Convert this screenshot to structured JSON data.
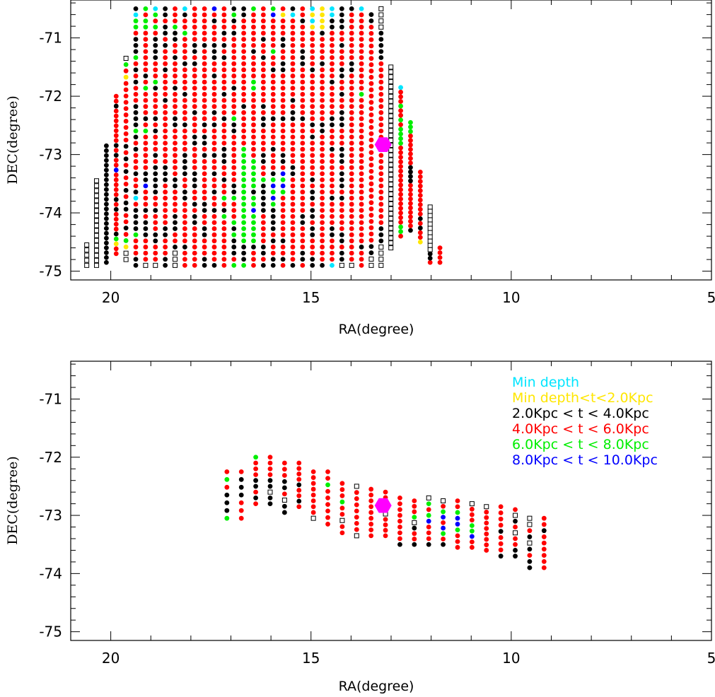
{
  "colors": {
    "cyan": "#00e5ff",
    "yellow": "#ffe600",
    "black": "#000000",
    "red": "#ff0000",
    "green": "#00ee00",
    "blue": "#0000ff",
    "empty": "#ffffff",
    "center": "#ff00ff"
  },
  "chart_data": [
    {
      "type": "scatter",
      "title": "",
      "xlabel": "RA(degree)",
      "ylabel": "DEC(degree)",
      "xlim": [
        21,
        5
      ],
      "ylim": [
        -75.15,
        -70.35
      ],
      "xticks": [
        20,
        15,
        10,
        5
      ],
      "yticks": [
        -71,
        -72,
        -73,
        -74,
        -75
      ],
      "grid": false,
      "center_marker": {
        "ra": 13.2,
        "dec": -72.83
      },
      "field": {
        "col_ra_start": 20.6,
        "col_ra_step": -0.245,
        "columns": [
          {
            "dec_min": -74.9,
            "dec_max": -74.55,
            "codes": "EEEEE"
          },
          {
            "dec_min": -74.9,
            "dec_max": -73.45,
            "codes": "EEEEEEEEEEEEEEEEEE"
          },
          {
            "dec_min": -74.85,
            "dec_max": -72.85,
            "codes": "KKKKKKKKKKKKKKKKKKKKKKKKK"
          },
          {
            "dec_min": -74.7,
            "dec_max": -72.0,
            "codes": "RRYGKRRRRKRKRRRRRBRRKRKRRRRRRRKRR"
          },
          {
            "dec_min": -74.8,
            "dec_max": -71.35,
            "codes": "EEYGRKRRKKRKRRKRKRKRRRRRRRRRRYRGE"
          },
          {
            "dec_min": -74.9,
            "dec_max": -70.5,
            "codes": "KKRRRGKKKKRCKRRKRRRKRKGKKKKRRRKRKRGKKKRGGCK"
          },
          {
            "dec_min": -74.9,
            "dec_max": -70.5,
            "codes": "ERRRRKKKRKRRRBKKRRRRRRGRKRRRRGRKRRRRRRRGGRG"
          },
          {
            "dec_min": -74.9,
            "dec_max": -70.5,
            "codes": "ERRRKKRRRKRRKKKKKRKRRRKRKRRRRKGRRRKKKKRGRGC"
          },
          {
            "dec_min": -74.9,
            "dec_max": -70.5,
            "codes": "KKRRRKKRRRRRRRKKKRRRRRRRRRRKRRRRKRRRKRKKRKK"
          },
          {
            "dec_min": -74.9,
            "dec_max": -70.5,
            "codes": "EEEKRRKKKRRRRKKRRRRRRRRKKRRRRKRRRRKRRKKGRRR"
          },
          {
            "dec_min": -74.9,
            "dec_max": -70.5,
            "codes": "RRRKRRRRRRRKKRRKKKKRRRRKRRRRKRRRRKRRRRGRRKC"
          },
          {
            "dec_min": -74.9,
            "dec_max": -70.5,
            "codes": "RRRRRRRKKRKRRKKKRRRRKKRRRKRRRRRRRKRKKRRRRRR"
          },
          {
            "dec_min": -74.9,
            "dec_max": -70.5,
            "codes": "KKRRRKKRRKKRRRRRRRKRKKRKRRRRRRRRRRRRKRRRRRR"
          },
          {
            "dec_min": -74.9,
            "dec_max": -70.5,
            "codes": "KRRRRRRRRKRRKRRKRRKRRRRKRKRRRRRKRRKKKRRRKRB"
          },
          {
            "dec_min": -74.9,
            "dec_max": -70.5,
            "codes": "RRRRRRRRGKRGRRKRRKKKRRRRKRRRKRRRRRKRKRKRRRR"
          },
          {
            "dec_min": -74.9,
            "dec_max": -70.5,
            "codes": "GRKKKGKGRRRGKKRRRRRRRRKKGRRRRKRRRRRRRRKRKGK"
          },
          {
            "dec_min": -74.9,
            "dec_max": -70.5,
            "codes": "GKKKGGGGGGGGGGGGGGGGRRRRRRKRRRRRRRRRRRRRRKK"
          },
          {
            "dec_min": -74.9,
            "dec_max": -70.5,
            "codes": "RRRKGGGGGBGGKGGGGGRRRRRRRRRRRGGRRRRKRRRRRRG"
          },
          {
            "dec_min": -74.9,
            "dec_max": -70.5,
            "codes": "KRKKRRRRRKKKKKGRRKKRRRRKKRKRRRRRRRKRRKRRRRR"
          },
          {
            "dec_min": -74.9,
            "dec_max": -70.5,
            "codes": "KKRRKRKKKKGBGBGKRRRKRRRRKRRRRRRRKRRGRRRRRBG"
          },
          {
            "dec_min": -74.9,
            "dec_max": -70.5,
            "codes": "RKRRKRRRRRRRGBGBRKKRRRRRKRRRRRRRKKRRKKRRRYR"
          },
          {
            "dec_min": -74.9,
            "dec_max": -70.5,
            "codes": "KRRRRRRRRRRRRRRKKRRRRRRRKKRKRRRRRRRRRRRRRCK"
          },
          {
            "dec_min": -74.9,
            "dec_max": -70.5,
            "codes": "RKKRRRRKKRRRRRRRRRRRRRRRKRRRRRRRRKKKRRRRKRR"
          },
          {
            "dec_min": -74.9,
            "dec_max": -70.5,
            "codes": "KKRRRKKRKKRKKRKRRRRRRKRKRRRRRRRRKRRRRRRYCYC"
          },
          {
            "dec_min": -74.9,
            "dec_max": -70.5,
            "codes": "KRRRRRRRRRRRRRRRRRRRRRKKRRRRRRRRRKRRRRKYYYY"
          },
          {
            "dec_min": -74.9,
            "dec_max": -70.5,
            "codes": "CRRRRKKRRRRKRRRRRRRKRRRKKRRRRRKRRRRRRRRKKCC"
          },
          {
            "dec_min": -74.9,
            "dec_max": -70.5,
            "codes": "EKKRKKRRRRRKRKKKRKKKRRRKKKRRKRRKKRRRKRRKKKK"
          },
          {
            "dec_min": -74.9,
            "dec_max": -70.5,
            "codes": "ERRRRRRRRRRRRRRRRRRRRRRRRRRRRRRRKKRRRRRRRRK"
          },
          {
            "dec_min": -74.9,
            "dec_max": -70.5,
            "codes": "RRRKRRRRRRRRRRRRRRRRRRRRRRRRGRRRRRRRRRRRRRC"
          },
          {
            "dec_min": -74.9,
            "dec_max": -70.6,
            "codes": "EEKKRRRRRRRRRRRRRRRRRRRRRRRRRRRRRRRRRRRKK"
          },
          {
            "dec_min": -74.9,
            "dec_max": -70.5,
            "codes": "EEEEKKKRRRRRRRRRRRRRRRRRRRRRRRRRRRKKKKKEEEE"
          },
          {
            "dec_min": -74.6,
            "dec_max": -71.5,
            "codes": "EEEEEEEEEEEEEEEEEEEEEEEEEEEEEEEEEEEEEE"
          },
          {
            "dec_min": -74.4,
            "dec_max": -71.85,
            "codes": "RGGRRRRRRRRRRRRRRRRRGGGGRGRRGRRRC"
          },
          {
            "dec_min": -74.3,
            "dec_max": -72.45,
            "codes": "KRRRRRRRRRRKKKKRRRRRRRGGG"
          },
          {
            "dec_min": -74.5,
            "dec_max": -73.3,
            "codes": "YRRKRKRRRRRRRRRR"
          },
          {
            "dec_min": -74.85,
            "dec_max": -73.9,
            "codes": "RKKEEEEEEEEEEE"
          },
          {
            "dec_min": -74.85,
            "dec_max": -74.6,
            "codes": "RRRR"
          }
        ]
      }
    },
    {
      "type": "scatter",
      "title": "",
      "xlabel": "RA(degree)",
      "ylabel": "DEC(degree)",
      "xlim": [
        21,
        5
      ],
      "ylim": [
        -75.15,
        -70.35
      ],
      "xticks": [
        20,
        15,
        10,
        5
      ],
      "yticks": [
        -71,
        -72,
        -73,
        -74,
        -75
      ],
      "grid": false,
      "center_marker": {
        "ra": 13.2,
        "dec": -72.83
      },
      "legend": {
        "position": "top-right",
        "entries": [
          {
            "label": "Min depth",
            "color": "#00e5ff"
          },
          {
            "label": "Min depth<t<2.0Kpc",
            "color": "#ffe600"
          },
          {
            "label": "2.0Kpc < t < 4.0Kpc",
            "color": "#000000"
          },
          {
            "label": "4.0Kpc < t < 6.0Kpc",
            "color": "#ff0000"
          },
          {
            "label": "6.0Kpc < t < 8.0Kpc",
            "color": "#00ee00"
          },
          {
            "label": "8.0Kpc < t < 10.0Kpc",
            "color": "#0000ff"
          }
        ]
      },
      "field": {
        "col_ra_start": 17.1,
        "col_ra_step": -0.36,
        "columns": [
          {
            "dec_min": -73.05,
            "dec_max": -72.25,
            "codes": "GKKKRGR"
          },
          {
            "dec_min": -73.05,
            "dec_max": -72.25,
            "codes": "RRRKKKR"
          },
          {
            "dec_min": -72.8,
            "dec_max": -72.0,
            "codes": "RKRKKRRRG"
          },
          {
            "dec_min": -72.8,
            "dec_max": -72.0,
            "codes": "KKEKKRRRR"
          },
          {
            "dec_min": -72.95,
            "dec_max": -72.1,
            "codes": "KKERKKRRR"
          },
          {
            "dec_min": -72.85,
            "dec_max": -72.1,
            "codes": "RKRRKRRRR"
          },
          {
            "dec_min": -73.05,
            "dec_max": -72.25,
            "codes": "ERRRRRRRR"
          },
          {
            "dec_min": -73.15,
            "dec_max": -72.25,
            "codes": "RRRRRRGRR"
          },
          {
            "dec_min": -73.3,
            "dec_max": -72.45,
            "codes": "RRERRGRRR"
          },
          {
            "dec_min": -73.35,
            "dec_max": -72.5,
            "codes": "ERRRRRRRE"
          },
          {
            "dec_min": -73.35,
            "dec_max": -72.55,
            "codes": "RRRRRRRRR"
          },
          {
            "dec_min": -73.35,
            "dec_max": -72.6,
            "codes": "RRRRERRRR"
          },
          {
            "dec_min": -73.5,
            "dec_max": -72.7,
            "codes": "KRRRRRRRR"
          },
          {
            "dec_min": -73.5,
            "dec_max": -72.75,
            "codes": "KRRKEGRRR"
          },
          {
            "dec_min": -73.5,
            "dec_max": -72.7,
            "codes": "KRRRBGRGE"
          },
          {
            "dec_min": -73.5,
            "dec_max": -72.75,
            "codes": "KRGBRBGRE"
          },
          {
            "dec_min": -73.55,
            "dec_max": -72.75,
            "codes": "RRRGBBGRR"
          },
          {
            "dec_min": -73.55,
            "dec_max": -72.8,
            "codes": "RRBGGRRRE"
          },
          {
            "dec_min": -73.6,
            "dec_max": -72.85,
            "codes": "RRRRRRRRE"
          },
          {
            "dec_min": -73.7,
            "dec_max": -72.85,
            "codes": "KRRRKRRRR"
          },
          {
            "dec_min": -73.7,
            "dec_max": -72.9,
            "codes": "KKRRERKER"
          },
          {
            "dec_min": -73.9,
            "dec_max": -73.05,
            "codes": "KKRKEKREE"
          },
          {
            "dec_min": -73.9,
            "dec_max": -73.05,
            "codes": "RRRRRRKRR"
          }
        ]
      }
    }
  ]
}
